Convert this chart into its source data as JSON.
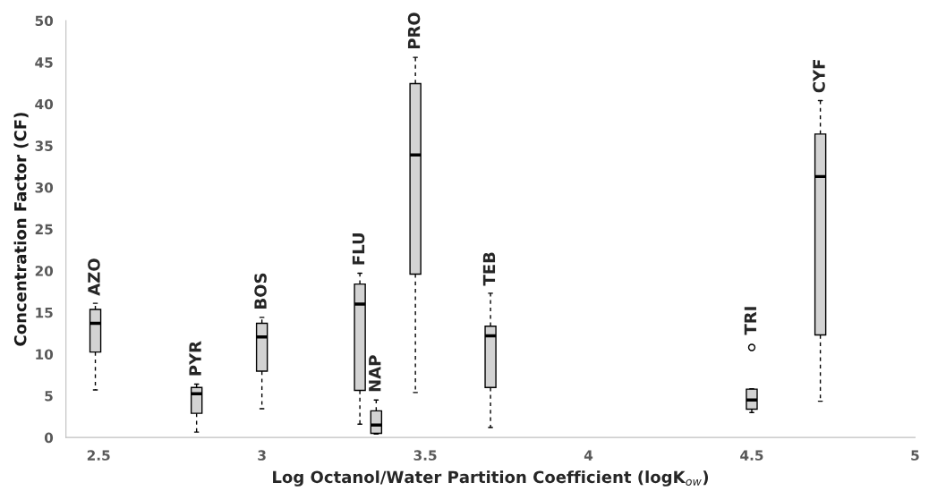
{
  "chart_data": {
    "type": "box",
    "xlabel": "Log Octanol/Water Partition Coefficient (logK$_{ow}$)",
    "ylabel": "Concentration Factor (CF)",
    "x": [
      2.49,
      2.8,
      3.0,
      3.3,
      3.35,
      3.47,
      3.7,
      4.5,
      4.71
    ],
    "boxes": [
      {
        "low": 5.7,
        "q1": 10.25,
        "median": 13.7,
        "q3": 15.35,
        "high": 16.1
      },
      {
        "low": 0.65,
        "q1": 2.9,
        "median": 5.25,
        "q3": 6.0,
        "high": 6.4
      },
      {
        "low": 3.45,
        "q1": 7.95,
        "median": 12.05,
        "q3": 13.7,
        "high": 14.4
      },
      {
        "low": 1.6,
        "q1": 5.65,
        "median": 16.0,
        "q3": 18.4,
        "high": 19.7
      },
      {
        "low": 0.4,
        "q1": 0.5,
        "median": 1.5,
        "q3": 3.2,
        "high": 4.5
      },
      {
        "low": 5.4,
        "q1": 19.6,
        "median": 33.9,
        "q3": 42.45,
        "high": 45.6
      },
      {
        "low": 1.2,
        "q1": 6.0,
        "median": 12.2,
        "q3": 13.35,
        "high": 17.3
      },
      {
        "low": 3.0,
        "q1": 3.4,
        "median": 4.5,
        "q3": 5.8,
        "high": 5.85,
        "outliers": [
          10.8
        ]
      },
      {
        "low": 4.35,
        "q1": 12.3,
        "median": 31.3,
        "q3": 36.4,
        "high": 40.4
      }
    ],
    "xlim": [
      2.4,
      5.0
    ],
    "xticks": [
      2.5,
      3,
      3.5,
      4,
      4.5,
      5
    ],
    "ylim": [
      0,
      50
    ],
    "yticks": [
      0,
      5,
      10,
      15,
      20,
      25,
      30,
      35,
      40,
      45,
      50
    ],
    "annotations": [
      "AZO",
      "PYR",
      "BOS",
      "FLU",
      "NAP",
      "PRO",
      "TEB",
      "TRI",
      "CYF"
    ]
  }
}
